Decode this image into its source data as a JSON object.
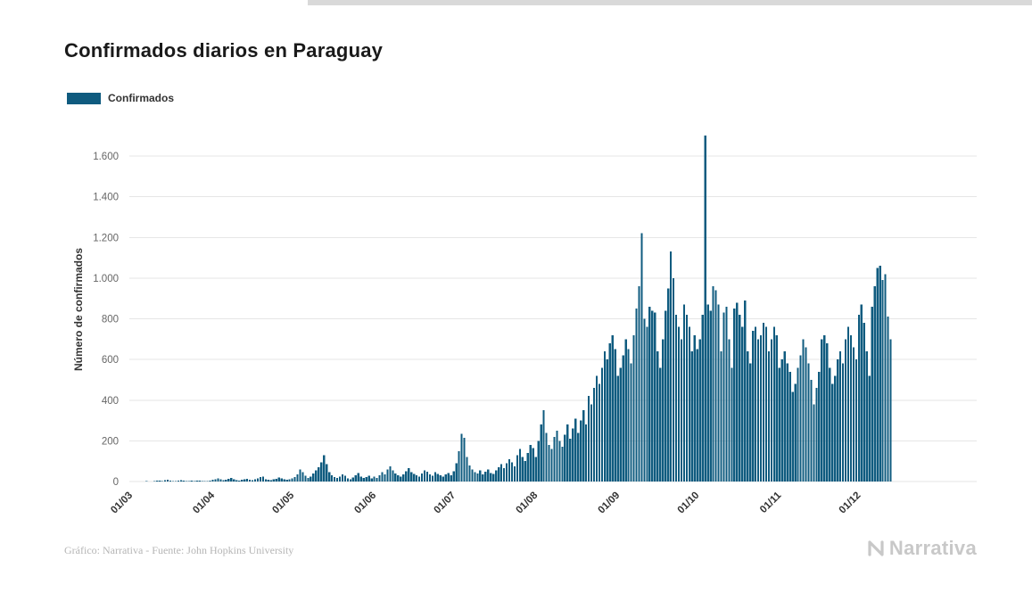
{
  "page": {
    "title": "Confirmados diarios en Paraguay"
  },
  "legend": {
    "label": "Confirmados",
    "color": "#0f5b7f"
  },
  "footer": {
    "credit": "Gráfico: Narrativa - Fuente: John Hopkins University",
    "brand": "Narrativa"
  },
  "chart_data": {
    "type": "bar",
    "title": "Confirmados diarios en Paraguay",
    "xlabel": "",
    "ylabel": "Número de confirmados",
    "ylim": [
      0,
      1700
    ],
    "grid": true,
    "legend_position": "top-left",
    "yticks": [
      0,
      200,
      400,
      600,
      800,
      1000,
      1200,
      1400,
      1600
    ],
    "ytick_labels": [
      "0",
      "200",
      "400",
      "600",
      "800",
      "1.000",
      "1.200",
      "1.400",
      "1.600"
    ],
    "x_tick_labels": [
      "01/03",
      "01/04",
      "01/05",
      "01/06",
      "01/07",
      "01/08",
      "01/09",
      "01/10",
      "01/11",
      "01/12"
    ],
    "x_tick_days": [
      0,
      31,
      61,
      92,
      122,
      153,
      184,
      214,
      245,
      275
    ],
    "x_domain_days": 320,
    "x_start": "01/03",
    "series": [
      {
        "name": "Confirmados",
        "color": "#0f5b7f",
        "values": [
          1,
          0,
          0,
          1,
          0,
          0,
          2,
          1,
          0,
          3,
          5,
          4,
          2,
          6,
          8,
          5,
          3,
          2,
          4,
          6,
          5,
          3,
          2,
          4,
          3,
          5,
          4,
          2,
          3,
          2,
          4,
          8,
          12,
          15,
          10,
          6,
          9,
          14,
          18,
          11,
          7,
          5,
          8,
          10,
          13,
          9,
          6,
          11,
          15,
          22,
          25,
          12,
          9,
          7,
          10,
          14,
          20,
          15,
          10,
          8,
          12,
          15,
          22,
          35,
          60,
          45,
          28,
          18,
          25,
          40,
          55,
          70,
          95,
          130,
          85,
          45,
          30,
          22,
          18,
          25,
          35,
          28,
          15,
          12,
          20,
          30,
          42,
          25,
          18,
          22,
          28,
          16,
          25,
          18,
          30,
          45,
          35,
          60,
          75,
          55,
          40,
          30,
          25,
          35,
          50,
          65,
          45,
          38,
          30,
          25,
          40,
          55,
          48,
          35,
          28,
          45,
          38,
          30,
          25,
          35,
          42,
          30,
          50,
          90,
          150,
          235,
          215,
          120,
          80,
          60,
          45,
          40,
          55,
          35,
          48,
          60,
          42,
          38,
          55,
          70,
          85,
          65,
          90,
          110,
          95,
          75,
          130,
          160,
          120,
          100,
          140,
          180,
          165,
          120,
          200,
          280,
          350,
          240,
          180,
          160,
          220,
          250,
          200,
          170,
          230,
          280,
          210,
          260,
          310,
          240,
          300,
          350,
          280,
          420,
          380,
          460,
          520,
          480,
          560,
          640,
          600,
          680,
          720,
          650,
          520,
          560,
          620,
          700,
          650,
          580,
          720,
          850,
          960,
          1220,
          800,
          760,
          860,
          840,
          830,
          640,
          560,
          700,
          840,
          950,
          1130,
          1000,
          820,
          760,
          700,
          870,
          820,
          760,
          640,
          720,
          650,
          700,
          820,
          1700,
          870,
          840,
          960,
          940,
          870,
          640,
          830,
          860,
          700,
          560,
          850,
          880,
          820,
          760,
          890,
          640,
          580,
          740,
          760,
          700,
          720,
          780,
          760,
          640,
          700,
          760,
          720,
          560,
          600,
          640,
          580,
          540,
          440,
          480,
          560,
          620,
          700,
          660,
          580,
          500,
          380,
          460,
          540,
          700,
          720,
          680,
          560,
          480,
          520,
          600,
          640,
          580,
          700,
          760,
          720,
          660,
          600,
          820,
          870,
          780,
          640,
          520,
          860,
          960,
          1050,
          1060,
          990,
          1020,
          810,
          700
        ]
      }
    ]
  }
}
